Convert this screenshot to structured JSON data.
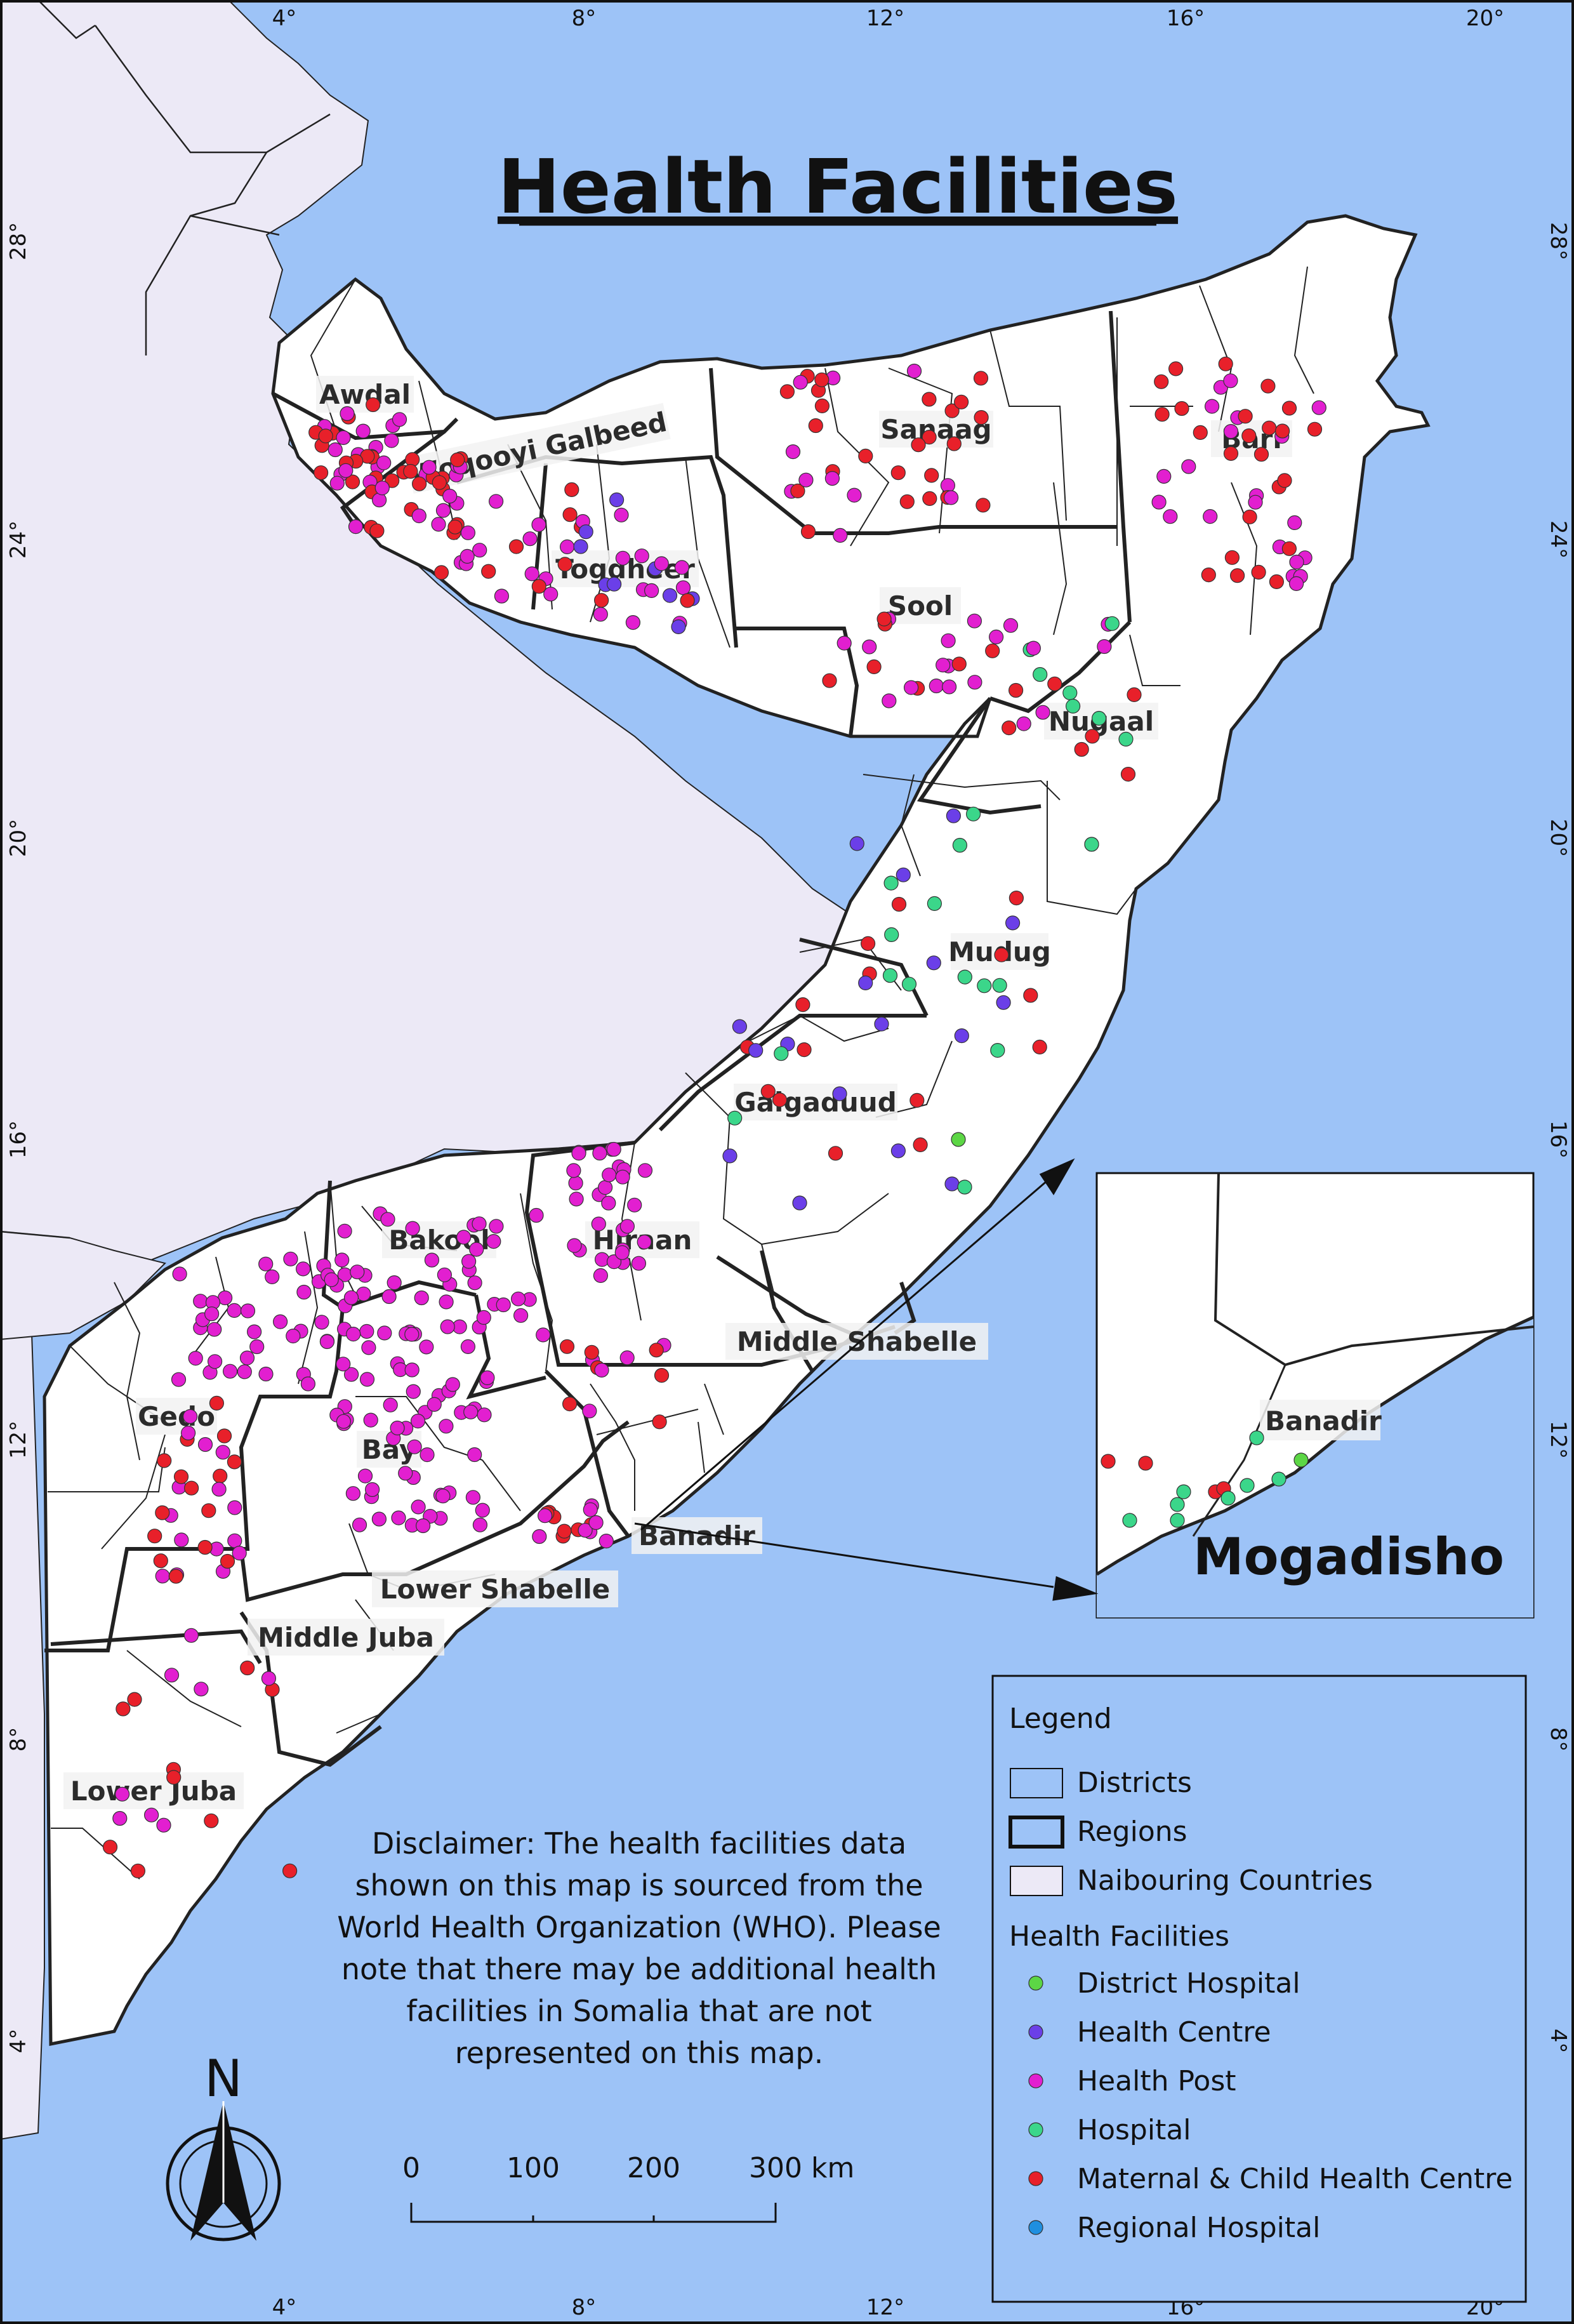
{
  "title": "Health Facilities",
  "ticks": {
    "top": [
      "4°",
      "8°",
      "12°",
      "16°",
      "20°"
    ],
    "bottom": [
      "4°",
      "8°",
      "12°",
      "16°",
      "20°"
    ],
    "left": [
      "28°",
      "24°",
      "20°",
      "16°",
      "12°",
      "8°",
      "4°"
    ],
    "right": [
      "28°",
      "24°",
      "20°",
      "16°",
      "12°",
      "8°",
      "4°"
    ]
  },
  "regions": [
    "Awdal",
    "Woqooyi Galbeed",
    "Togdheer",
    "Sanaag",
    "Sool",
    "Bari",
    "Nugaal",
    "Mudug",
    "Galgaduud",
    "Hiraan",
    "Bakool",
    "Middle Shabelle",
    "Gedo",
    "Bay",
    "Banadir",
    "Lower Shabelle",
    "Middle Juba",
    "Lower Juba"
  ],
  "inset": {
    "city": "Mogadisho",
    "region": "Banadir"
  },
  "legend": {
    "title": "Legend",
    "layers": [
      "Districts",
      "Regions",
      "Naibouring Countries"
    ],
    "facilities_title": "Health Facilities",
    "facilities": [
      {
        "label": "District Hospital",
        "color": "#5cd645"
      },
      {
        "label": "Health Centre",
        "color": "#6b3fe8"
      },
      {
        "label": "Health Post",
        "color": "#e21fd0"
      },
      {
        "label": "Hospital",
        "color": "#3bd68a"
      },
      {
        "label": "Maternal & Child Health Centre",
        "color": "#e8202a"
      },
      {
        "label": "Regional Hospital",
        "color": "#1f8fe0"
      }
    ]
  },
  "disclaimer": [
    "Disclaimer: The health facilities data",
    "shown on this map is sourced from the",
    "World Health Organization (WHO). Please",
    "note that there may be additional health",
    "facilities in Somalia that are not",
    "represented on this map."
  ],
  "north": "N",
  "scale": {
    "labels": [
      "0",
      "100",
      "200",
      "300 km"
    ]
  },
  "colors": {
    "sea": "#9dc3f7",
    "neighbour": "#ece9f6",
    "somalia": "#ffffff"
  }
}
